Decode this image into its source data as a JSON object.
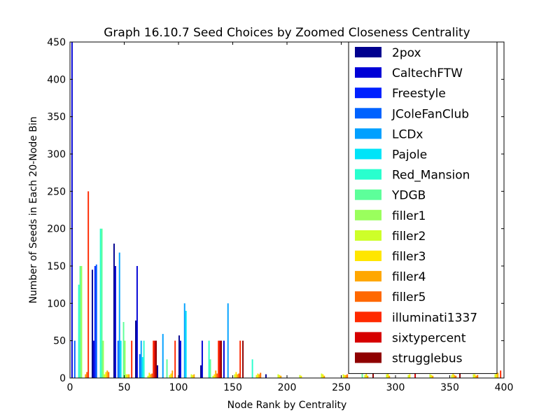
{
  "chart_data": {
    "type": "bar",
    "title": "Graph 16.10.7 Seed Choices by Zoomed Closeness Centrality",
    "xlabel": "Node Rank by Centrality",
    "ylabel": "Number of Seeds in Each 20-Node Bin",
    "xlim": [
      0,
      400
    ],
    "ylim": [
      0,
      450
    ],
    "xticks": [
      0,
      50,
      100,
      150,
      200,
      250,
      300,
      350,
      400
    ],
    "yticks": [
      0,
      50,
      100,
      150,
      200,
      250,
      300,
      350,
      400,
      450
    ],
    "grid": false,
    "legend_position": "top-right",
    "bin_starts": [
      0,
      20,
      40,
      60,
      80,
      100,
      120,
      140,
      160,
      180,
      200,
      220,
      240,
      260,
      280,
      300,
      320,
      340,
      360,
      380
    ],
    "series": [
      {
        "name": "2pox",
        "color": "#00008f",
        "values": [
          0,
          145,
          180,
          77,
          17,
          57,
          17,
          0,
          0,
          5,
          0,
          0,
          0,
          0,
          0,
          0,
          0,
          0,
          0,
          0
        ]
      },
      {
        "name": "CaltechFTW",
        "color": "#0000d6",
        "values": [
          450,
          50,
          150,
          150,
          0,
          50,
          50,
          50,
          0,
          0,
          0,
          0,
          0,
          0,
          0,
          0,
          0,
          0,
          0,
          0
        ]
      },
      {
        "name": "Freestyle",
        "color": "#0020ff",
        "values": [
          0,
          150,
          0,
          0,
          0,
          0,
          0,
          0,
          0,
          0,
          0,
          0,
          0,
          0,
          0,
          0,
          0,
          0,
          0,
          0
        ]
      },
      {
        "name": "JColeFanClub",
        "color": "#0062ff",
        "values": [
          50,
          152,
          50,
          32,
          0,
          0,
          0,
          0,
          0,
          0,
          0,
          0,
          0,
          0,
          0,
          0,
          0,
          0,
          0,
          0
        ]
      },
      {
        "name": "LCDx",
        "color": "#00a0ff",
        "values": [
          0,
          0,
          168,
          50,
          59,
          100,
          0,
          100,
          0,
          0,
          0,
          0,
          0,
          0,
          0,
          0,
          0,
          0,
          0,
          0
        ]
      },
      {
        "name": "Pajole",
        "color": "#00e4f8",
        "values": [
          0,
          0,
          50,
          28,
          0,
          90,
          0,
          0,
          0,
          0,
          0,
          0,
          0,
          0,
          0,
          0,
          0,
          0,
          0,
          0
        ]
      },
      {
        "name": "Red_Mansion",
        "color": "#29ffce",
        "values": [
          125,
          200,
          0,
          50,
          0,
          0,
          50,
          0,
          25,
          0,
          0,
          0,
          0,
          0,
          0,
          0,
          0,
          0,
          0,
          0
        ]
      },
      {
        "name": "YDGB",
        "color": "#5dff9a",
        "values": [
          150,
          200,
          75,
          0,
          25,
          0,
          25,
          0,
          0,
          0,
          0,
          0,
          0,
          25,
          0,
          0,
          0,
          0,
          0,
          0
        ]
      },
      {
        "name": "filler1",
        "color": "#9aff5d",
        "values": [
          150,
          50,
          50,
          0,
          0,
          0,
          0,
          0,
          0,
          0,
          0,
          0,
          0,
          0,
          0,
          0,
          0,
          0,
          0,
          0
        ]
      },
      {
        "name": "filler2",
        "color": "#ceff29",
        "values": [
          0,
          5,
          5,
          3,
          4,
          5,
          3,
          5,
          4,
          5,
          4,
          6,
          5,
          4,
          5,
          4,
          5,
          4,
          5,
          5
        ]
      },
      {
        "name": "filler3",
        "color": "#ffe600",
        "values": [
          0,
          8,
          5,
          7,
          6,
          4,
          5,
          8,
          6,
          4,
          3,
          5,
          4,
          6,
          7,
          5,
          4,
          6,
          5,
          8
        ]
      },
      {
        "name": "filler4",
        "color": "#ffa700",
        "values": [
          5,
          10,
          5,
          5,
          10,
          5,
          10,
          5,
          5,
          3,
          0,
          3,
          4,
          3,
          3,
          0,
          3,
          4,
          3,
          7
        ]
      },
      {
        "name": "filler5",
        "color": "#ff6800",
        "values": [
          8,
          8,
          0,
          6,
          0,
          0,
          6,
          6,
          7,
          0,
          0,
          0,
          5,
          0,
          0,
          0,
          0,
          3,
          4,
          0
        ]
      },
      {
        "name": "illuminati1337",
        "color": "#ff2900",
        "values": [
          250,
          0,
          50,
          50,
          50,
          0,
          50,
          50,
          0,
          0,
          0,
          0,
          0,
          0,
          0,
          0,
          0,
          0,
          0,
          10
        ]
      },
      {
        "name": "sixtypercent",
        "color": "#d60000",
        "values": [
          0,
          0,
          0,
          50,
          0,
          0,
          50,
          0,
          0,
          0,
          0,
          0,
          0,
          0,
          0,
          10,
          0,
          0,
          0,
          0
        ]
      },
      {
        "name": "strugglebus",
        "color": "#8f0000",
        "values": [
          0,
          0,
          0,
          50,
          0,
          0,
          50,
          50,
          0,
          0,
          0,
          0,
          0,
          50,
          0,
          0,
          0,
          10,
          0,
          0
        ]
      }
    ]
  }
}
